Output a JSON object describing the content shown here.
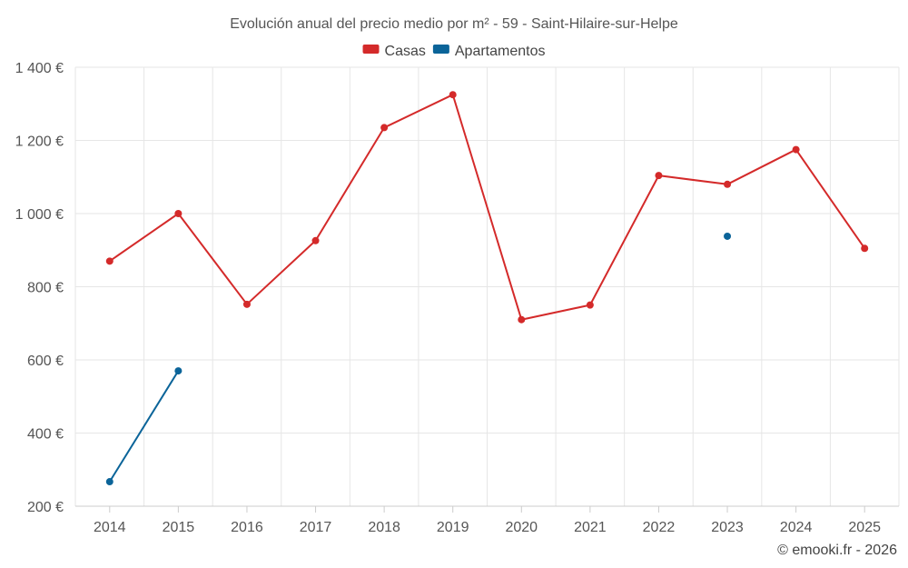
{
  "chart_data": {
    "type": "line",
    "title": "Evolución anual del precio medio por m² - 59 - Saint-Hilaire-sur-Helpe",
    "xlabel": "",
    "ylabel": "",
    "categories": [
      "2014",
      "2015",
      "2016",
      "2017",
      "2018",
      "2019",
      "2020",
      "2021",
      "2022",
      "2023",
      "2024",
      "2025"
    ],
    "ylim": [
      200,
      1400
    ],
    "yticks": [
      200,
      400,
      600,
      800,
      1000,
      1200,
      1400
    ],
    "ytick_labels": [
      "200 €",
      "400 €",
      "600 €",
      "800 €",
      "1 000 €",
      "1 200 €",
      "1 400 €"
    ],
    "grid": true,
    "legend_position": "top-center",
    "series": [
      {
        "name": "Casas",
        "color": "#d42a2a",
        "values": [
          870,
          1000,
          752,
          926,
          1235,
          1325,
          710,
          750,
          1104,
          1080,
          1175,
          905
        ]
      },
      {
        "name": "Apartamentos",
        "color": "#0b6499",
        "values": [
          267,
          570,
          null,
          null,
          null,
          null,
          null,
          null,
          null,
          938,
          null,
          null
        ]
      }
    ]
  },
  "credit": "© emooki.fr - 2026"
}
